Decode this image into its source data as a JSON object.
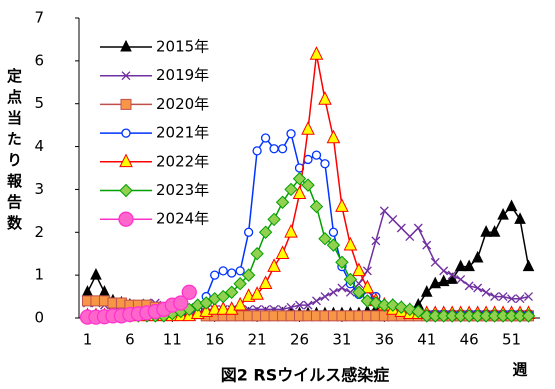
{
  "chart_data": {
    "type": "line",
    "title": "図2 RSウイルス感染症",
    "y_label": "定点当たり報告数",
    "x_label": "週",
    "x": [
      1,
      2,
      3,
      4,
      5,
      6,
      7,
      8,
      9,
      10,
      11,
      12,
      13,
      14,
      15,
      16,
      17,
      18,
      19,
      20,
      21,
      22,
      23,
      24,
      25,
      26,
      27,
      28,
      29,
      30,
      31,
      32,
      33,
      34,
      35,
      36,
      37,
      38,
      39,
      40,
      41,
      42,
      43,
      44,
      45,
      46,
      47,
      48,
      49,
      50,
      51,
      52,
      53
    ],
    "xlim": [
      0,
      54
    ],
    "xticks": [
      1,
      6,
      11,
      16,
      21,
      26,
      31,
      36,
      41,
      46,
      51
    ],
    "ylim": [
      0,
      7
    ],
    "yticks": [
      0,
      1,
      2,
      3,
      4,
      5,
      6,
      7
    ],
    "grid": false,
    "legend": "top-left",
    "series": [
      {
        "name": "2015年",
        "color": "#000000",
        "fill": "#000000",
        "marker": "triangle",
        "marker_size": 5,
        "values": [
          0.6,
          1.0,
          0.6,
          0.4,
          0.35,
          0.3,
          0.25,
          0.2,
          0.2,
          0.15,
          0.15,
          0.15,
          0.1,
          0.1,
          0.1,
          0.1,
          0.1,
          0.1,
          0.1,
          0.1,
          0.1,
          0.1,
          0.1,
          0.1,
          0.1,
          0.1,
          0.1,
          0.1,
          0.1,
          0.1,
          0.1,
          0.1,
          0.1,
          0.15,
          0.2,
          0.25,
          0.3,
          0.25,
          0.2,
          0.3,
          0.6,
          0.8,
          0.85,
          0.9,
          1.2,
          1.2,
          1.4,
          2.0,
          2.0,
          2.4,
          2.6,
          2.3,
          1.2
        ]
      },
      {
        "name": "2019年",
        "color": "#7030a0",
        "fill": "#7030a0",
        "marker": "x",
        "marker_size": 4,
        "values": [
          0.35,
          0.35,
          0.3,
          0.3,
          0.3,
          0.3,
          0.3,
          0.35,
          0.35,
          0.3,
          0.3,
          0.25,
          0.25,
          0.25,
          0.2,
          0.2,
          0.2,
          0.2,
          0.2,
          0.2,
          0.2,
          0.2,
          0.2,
          0.2,
          0.25,
          0.3,
          0.3,
          0.4,
          0.5,
          0.6,
          0.7,
          0.6,
          0.8,
          1.1,
          1.8,
          2.5,
          2.3,
          2.1,
          1.9,
          2.1,
          1.7,
          1.3,
          1.1,
          1.0,
          0.9,
          0.75,
          0.7,
          0.6,
          0.5,
          0.5,
          0.45,
          0.45,
          0.5
        ]
      },
      {
        "name": "2020年",
        "color": "#c0504d",
        "fill": "#f79646",
        "marker": "square",
        "marker_size": 5,
        "values": [
          0.4,
          0.4,
          0.4,
          0.35,
          0.35,
          0.3,
          0.3,
          0.3,
          0.25,
          0.25,
          0.2,
          0.15,
          0.15,
          0.1,
          0.05,
          0.05,
          0.05,
          0.05,
          0.05,
          0.05,
          0.05,
          0.05,
          0.05,
          0.05,
          0.05,
          0.05,
          0.05,
          0.05,
          0.05,
          0.05,
          0.05,
          0.05,
          0.05,
          0.05,
          0.05,
          0.05,
          0.05,
          0.05,
          0.05,
          0.05,
          0.05,
          0.05,
          0.05,
          0.05,
          0.05,
          0.05,
          0.05,
          0.05,
          0.05,
          0.05,
          0.05,
          0.05,
          0.05
        ]
      },
      {
        "name": "2021年",
        "color": "#0033ff",
        "fill": "#ffffff",
        "marker": "circle",
        "marker_size": 4,
        "values": [
          0.05,
          0.05,
          0.05,
          0.05,
          0.05,
          0.05,
          0.05,
          0.05,
          0.05,
          0.05,
          0.05,
          0.05,
          0.1,
          0.2,
          0.5,
          1.0,
          1.1,
          1.05,
          1.1,
          2.0,
          3.9,
          4.2,
          3.95,
          3.95,
          4.3,
          3.5,
          3.7,
          3.8,
          3.6,
          2.0,
          1.2,
          0.8,
          0.55,
          0.5,
          0.5,
          0.3,
          0.2,
          0.15,
          0.1,
          0.1,
          0.1,
          0.1,
          0.1,
          0.1,
          0.1,
          0.1,
          0.1,
          0.1,
          0.1,
          0.1,
          0.1,
          0.1,
          0.1
        ]
      },
      {
        "name": "2022年",
        "color": "#ff0000",
        "fill": "#ffff00",
        "marker": "triangle",
        "marker_size": 6,
        "values": [
          0.05,
          0.05,
          0.05,
          0.05,
          0.05,
          0.05,
          0.05,
          0.05,
          0.05,
          0.05,
          0.05,
          0.05,
          0.05,
          0.1,
          0.15,
          0.2,
          0.2,
          0.2,
          0.3,
          0.5,
          0.55,
          0.8,
          1.2,
          1.5,
          2.0,
          2.9,
          4.4,
          6.15,
          5.1,
          4.2,
          2.6,
          1.7,
          1.1,
          0.7,
          0.4,
          0.3,
          0.2,
          0.15,
          0.1,
          0.1,
          0.1,
          0.1,
          0.1,
          0.1,
          0.1,
          0.1,
          0.1,
          0.1,
          0.1,
          0.1,
          0.1,
          0.1,
          0.1
        ]
      },
      {
        "name": "2023年",
        "color": "#00a000",
        "fill": "#92d050",
        "marker": "diamond",
        "marker_size": 6,
        "values": [
          0.05,
          0.05,
          0.05,
          0.05,
          0.05,
          0.05,
          0.05,
          0.05,
          0.05,
          0.05,
          0.1,
          0.15,
          0.2,
          0.3,
          0.35,
          0.45,
          0.5,
          0.6,
          0.8,
          1.0,
          1.5,
          2.0,
          2.3,
          2.7,
          3.0,
          3.25,
          3.1,
          2.6,
          1.85,
          1.7,
          1.3,
          0.9,
          0.6,
          0.4,
          0.35,
          0.3,
          0.3,
          0.25,
          0.2,
          0.15,
          0.05,
          0.05,
          0.05,
          0.05,
          0.05,
          0.05,
          0.05,
          0.05,
          0.05,
          0.05,
          0.05,
          0.05,
          0.05
        ]
      },
      {
        "name": "2024年",
        "color": "#ff33cc",
        "fill": "#ff66cc",
        "marker": "circle",
        "marker_size": 7,
        "values": [
          0.02,
          0.02,
          0.03,
          0.05,
          0.05,
          0.08,
          0.1,
          0.12,
          0.15,
          0.2,
          0.3,
          0.35,
          0.6,
          null,
          null,
          null,
          null,
          null,
          null,
          null,
          null,
          null,
          null,
          null,
          null,
          null,
          null,
          null,
          null,
          null,
          null,
          null,
          null,
          null,
          null,
          null,
          null,
          null,
          null,
          null,
          null,
          null,
          null,
          null,
          null,
          null,
          null,
          null,
          null,
          null,
          null,
          null,
          null
        ]
      }
    ]
  }
}
